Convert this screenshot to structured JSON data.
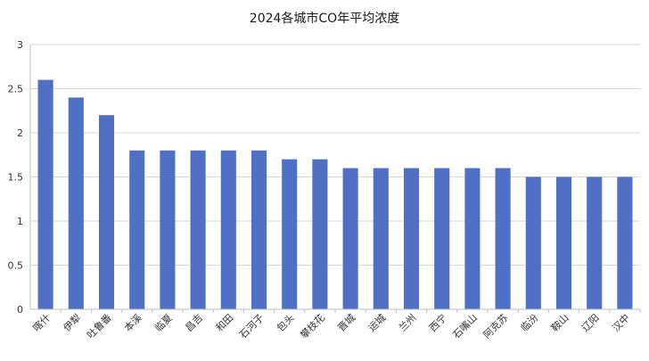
{
  "chart_data": {
    "type": "bar",
    "title": "2024各城市CO年平均浓度",
    "xlabel": "",
    "ylabel": "",
    "ylim": [
      0,
      3
    ],
    "yticks": [
      "0",
      "0.5",
      "1",
      "1.5",
      "2",
      "2.5",
      "3"
    ],
    "grid": true,
    "legend": "none",
    "bar_color": "#4f70c4",
    "categories": [
      "喀什",
      "伊犁",
      "吐鲁番",
      "本溪",
      "临夏",
      "昌吉",
      "和田",
      "石河子",
      "包头",
      "攀枝花",
      "晋城",
      "运城",
      "兰州",
      "西宁",
      "石嘴山",
      "阿克苏",
      "临汾",
      "鞍山",
      "辽阳",
      "汉中"
    ],
    "values": [
      2.6,
      2.4,
      2.2,
      1.8,
      1.8,
      1.8,
      1.8,
      1.8,
      1.7,
      1.7,
      1.6,
      1.6,
      1.6,
      1.6,
      1.6,
      1.6,
      1.5,
      1.5,
      1.5,
      1.5
    ]
  }
}
